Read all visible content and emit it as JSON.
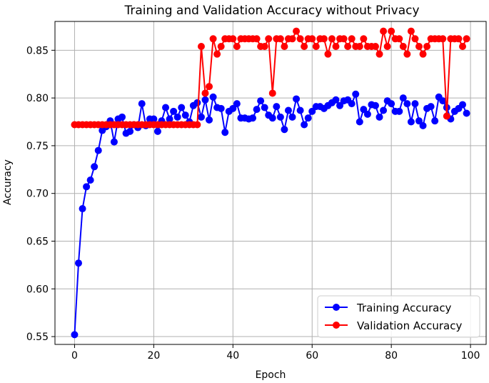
{
  "chart_data": {
    "type": "line",
    "title": "Training and Validation Accuracy without Privacy",
    "xlabel": "Epoch",
    "ylabel": "Accuracy",
    "xlim": [
      -4.95,
      103.95
    ],
    "ylim": [
      0.5418,
      0.8802
    ],
    "xticks": [
      0,
      20,
      40,
      60,
      80,
      100
    ],
    "yticks": [
      0.55,
      0.6,
      0.65,
      0.7,
      0.75,
      0.8,
      0.85
    ],
    "ytick_labels": [
      "0.55",
      "0.60",
      "0.65",
      "0.70",
      "0.75",
      "0.80",
      "0.85"
    ],
    "grid": true,
    "legend_position": "lower-right",
    "x": [
      0,
      1,
      2,
      3,
      4,
      5,
      6,
      7,
      8,
      9,
      10,
      11,
      12,
      13,
      14,
      15,
      16,
      17,
      18,
      19,
      20,
      21,
      22,
      23,
      24,
      25,
      26,
      27,
      28,
      29,
      30,
      31,
      32,
      33,
      34,
      35,
      36,
      37,
      38,
      39,
      40,
      41,
      42,
      43,
      44,
      45,
      46,
      47,
      48,
      49,
      50,
      51,
      52,
      53,
      54,
      55,
      56,
      57,
      58,
      59,
      60,
      61,
      62,
      63,
      64,
      65,
      66,
      67,
      68,
      69,
      70,
      71,
      72,
      73,
      74,
      75,
      76,
      77,
      78,
      79,
      80,
      81,
      82,
      83,
      84,
      85,
      86,
      87,
      88,
      89,
      90,
      91,
      92,
      93,
      94,
      95,
      96,
      97,
      98,
      99
    ],
    "series": [
      {
        "name": "Training Accuracy",
        "color": "#0000ff",
        "values": [
          0.552,
          0.627,
          0.684,
          0.707,
          0.714,
          0.728,
          0.745,
          0.766,
          0.77,
          0.776,
          0.754,
          0.778,
          0.78,
          0.763,
          0.765,
          0.772,
          0.769,
          0.794,
          0.771,
          0.778,
          0.778,
          0.765,
          0.776,
          0.79,
          0.778,
          0.786,
          0.78,
          0.79,
          0.782,
          0.775,
          0.792,
          0.795,
          0.78,
          0.798,
          0.777,
          0.801,
          0.79,
          0.789,
          0.764,
          0.786,
          0.789,
          0.794,
          0.779,
          0.779,
          0.778,
          0.779,
          0.788,
          0.797,
          0.79,
          0.782,
          0.779,
          0.791,
          0.78,
          0.767,
          0.787,
          0.78,
          0.799,
          0.787,
          0.772,
          0.779,
          0.786,
          0.791,
          0.791,
          0.789,
          0.792,
          0.795,
          0.798,
          0.792,
          0.797,
          0.798,
          0.794,
          0.804,
          0.775,
          0.788,
          0.783,
          0.793,
          0.792,
          0.78,
          0.787,
          0.797,
          0.794,
          0.786,
          0.786,
          0.8,
          0.794,
          0.775,
          0.794,
          0.776,
          0.771,
          0.789,
          0.791,
          0.776,
          0.801,
          0.797,
          0.79,
          0.778,
          0.786,
          0.789,
          0.793,
          0.784
        ]
      },
      {
        "name": "Validation Accuracy",
        "color": "#ff0000",
        "values": [
          0.772,
          0.772,
          0.772,
          0.772,
          0.772,
          0.772,
          0.772,
          0.772,
          0.772,
          0.772,
          0.772,
          0.772,
          0.772,
          0.772,
          0.772,
          0.772,
          0.772,
          0.772,
          0.772,
          0.772,
          0.772,
          0.772,
          0.772,
          0.772,
          0.772,
          0.772,
          0.772,
          0.772,
          0.772,
          0.772,
          0.772,
          0.772,
          0.854,
          0.805,
          0.812,
          0.862,
          0.846,
          0.854,
          0.862,
          0.862,
          0.862,
          0.854,
          0.862,
          0.862,
          0.862,
          0.862,
          0.862,
          0.854,
          0.854,
          0.862,
          0.805,
          0.862,
          0.862,
          0.854,
          0.862,
          0.862,
          0.87,
          0.862,
          0.854,
          0.862,
          0.862,
          0.854,
          0.862,
          0.862,
          0.846,
          0.862,
          0.854,
          0.862,
          0.862,
          0.854,
          0.862,
          0.854,
          0.854,
          0.862,
          0.854,
          0.854,
          0.854,
          0.846,
          0.87,
          0.854,
          0.87,
          0.862,
          0.862,
          0.854,
          0.846,
          0.87,
          0.862,
          0.854,
          0.846,
          0.854,
          0.862,
          0.862,
          0.862,
          0.862,
          0.781,
          0.862,
          0.862,
          0.862,
          0.854,
          0.862
        ]
      }
    ]
  }
}
